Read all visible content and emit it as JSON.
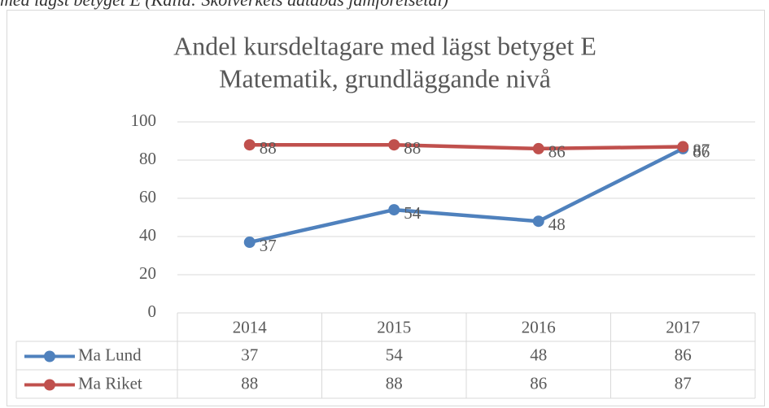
{
  "caption": "med lägst betyget E (Källa: Skolverkets databas jämförelsetal)",
  "chart_data": {
    "type": "line",
    "title": [
      "Andel kursdeltagare med lägst betyget E",
      "Matematik, grundläggande nivå"
    ],
    "categories": [
      "2014",
      "2015",
      "2016",
      "2017"
    ],
    "series": [
      {
        "name": "Ma Lund",
        "color": "#4f81bd",
        "values": [
          37,
          54,
          48,
          86
        ]
      },
      {
        "name": "Ma Riket",
        "color": "#c0504d",
        "values": [
          88,
          88,
          86,
          87
        ]
      }
    ],
    "ylim": [
      0,
      100
    ],
    "yticks": [
      0,
      20,
      40,
      60,
      80,
      100
    ],
    "grid": true,
    "data_table": true
  }
}
